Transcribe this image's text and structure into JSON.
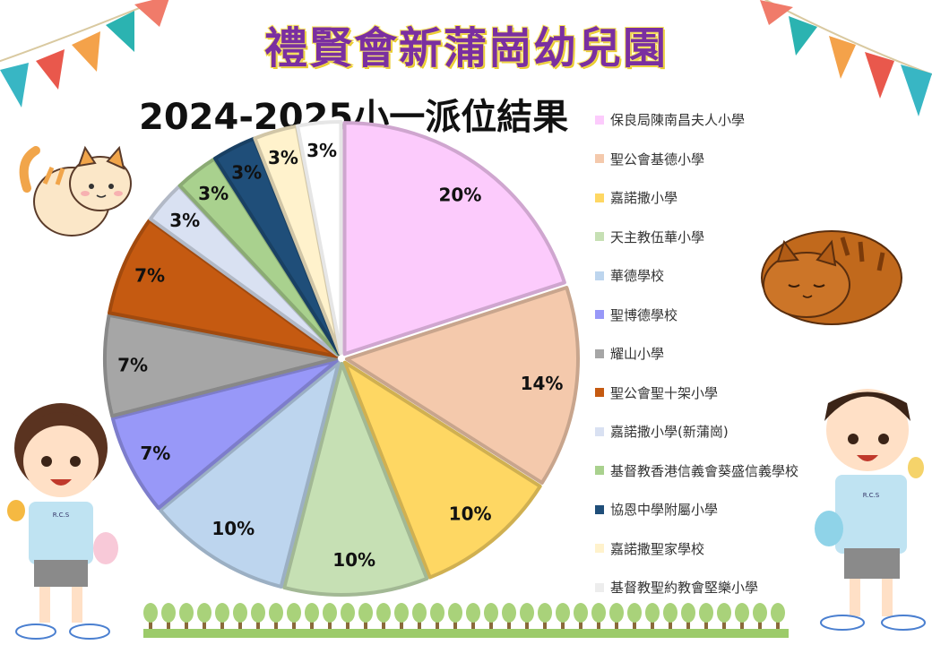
{
  "header": {
    "school_name": "禮賢會新蒲崗幼兒園",
    "chart_title": "2024-2025小一派位結果"
  },
  "chart_data": {
    "type": "pie",
    "title": "2024-2025小一派位結果",
    "legend_position": "right",
    "slices": [
      {
        "label": "保良局陳南昌夫人小學",
        "value": 20,
        "display": "20%",
        "color": "#fccbfc"
      },
      {
        "label": "聖公會基德小學",
        "value": 14,
        "display": "14%",
        "color": "#f4c9ac"
      },
      {
        "label": "嘉諾撒小學",
        "value": 10,
        "display": "10%",
        "color": "#fed763"
      },
      {
        "label": "天主教伍華小學",
        "value": 10,
        "display": "10%",
        "color": "#c6e0b4"
      },
      {
        "label": "華德學校",
        "value": 10,
        "display": "10%",
        "color": "#bdd5ee"
      },
      {
        "label": "聖博德學校",
        "value": 7,
        "display": "7%",
        "color": "#9898f8"
      },
      {
        "label": "耀山小學",
        "value": 7,
        "display": "7%",
        "color": "#a6a6a6"
      },
      {
        "label": "聖公會聖十架小學",
        "value": 7,
        "display": "7%",
        "color": "#c55a11"
      },
      {
        "label": "嘉諾撒小學(新蒲崗)",
        "value": 3,
        "display": "3%",
        "color": "#d9e1f2"
      },
      {
        "label": "基督教香港信義會葵盛信義學校",
        "value": 3,
        "display": "3%",
        "color": "#a9d18e"
      },
      {
        "label": "協恩中學附屬小學",
        "value": 3,
        "display": "3%",
        "color": "#1f4e79"
      },
      {
        "label": "嘉諾撒聖家學校",
        "value": 3,
        "display": "3%",
        "color": "#fff2cc"
      },
      {
        "label": "基督教聖約教會堅樂小學",
        "value": 3,
        "display": "3%",
        "color": "#ffffff"
      }
    ]
  },
  "decorations": {
    "shirt_text": "R.C.S"
  }
}
